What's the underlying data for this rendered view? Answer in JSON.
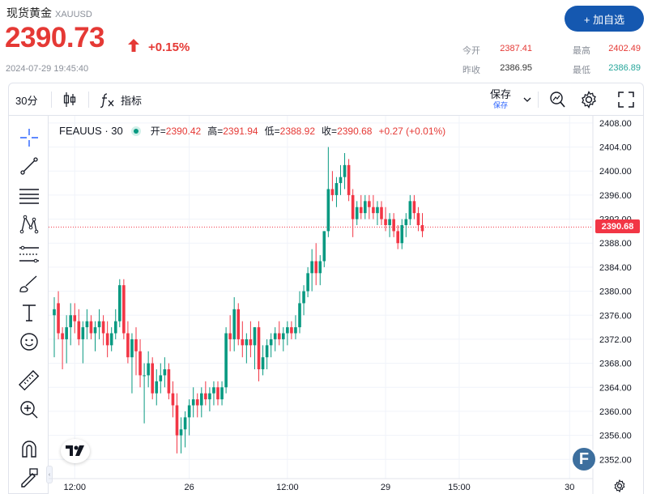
{
  "header": {
    "name": "现货黄金",
    "code": "XAUUSD",
    "price": "2390.73",
    "change": "+0.15%",
    "timestamp": "2024-07-29 19:45:40",
    "watch_button": "+ 加自选",
    "quote": {
      "open_label": "今开",
      "open": "2387.41",
      "high_label": "最高",
      "high": "2402.49",
      "prev_label": "昨收",
      "prev": "2386.95",
      "low_label": "最低",
      "low": "2386.89"
    }
  },
  "toolbar": {
    "interval": "30分",
    "indicators": "指标",
    "save": "保存",
    "save_sub": "保存"
  },
  "left_tools": [
    "crosshair-icon",
    "trend-line-icon",
    "horizontal-lines-icon",
    "pattern-icon",
    "measure-lines-icon",
    "brush-icon",
    "text-icon",
    "emoji-icon",
    "ruler-icon",
    "zoom-in-icon",
    "magnet-icon",
    "lock-pencil-icon"
  ],
  "chart_data": {
    "type": "candlestick",
    "symbol": "FEAUUS",
    "interval": "30",
    "legend": {
      "open_label": "开",
      "open": "2390.42",
      "high_label": "高",
      "high": "2391.94",
      "low_label": "低",
      "low": "2388.92",
      "close_label": "收",
      "close": "2390.68",
      "change": "+0.27 (+0.01%)"
    },
    "last_price": "2390.68",
    "y_ticks": [
      "2408.00",
      "2404.00",
      "2400.00",
      "2396.00",
      "2392.00",
      "2388.00",
      "2384.00",
      "2380.00",
      "2376.00",
      "2372.00",
      "2368.00",
      "2364.00",
      "2360.00",
      "2356.00",
      "2352.00"
    ],
    "ylim": [
      2348.8,
      2409.2
    ],
    "x_ticks": [
      {
        "label": "12:00",
        "index": 5
      },
      {
        "label": "26",
        "index": 33
      },
      {
        "label": "12:00",
        "index": 57
      },
      {
        "label": "29",
        "index": 81
      },
      {
        "label": "15:00",
        "index": 99
      },
      {
        "label": "30",
        "index": 126
      }
    ],
    "candles_ohlc": [
      [
        2376,
        2379,
        2369,
        2377
      ],
      [
        2378,
        2380,
        2372,
        2373
      ],
      [
        2373,
        2374,
        2367,
        2372
      ],
      [
        2372,
        2376,
        2368,
        2374
      ],
      [
        2374,
        2378,
        2371,
        2376
      ],
      [
        2376,
        2378,
        2373,
        2375
      ],
      [
        2375,
        2377,
        2371,
        2372
      ],
      [
        2372,
        2375,
        2368,
        2374
      ],
      [
        2374,
        2377,
        2372,
        2375
      ],
      [
        2375,
        2376,
        2372,
        2373
      ],
      [
        2373,
        2375,
        2370,
        2374
      ],
      [
        2374,
        2377,
        2372,
        2375
      ],
      [
        2375,
        2376,
        2371,
        2373
      ],
      [
        2373,
        2375,
        2369,
        2371
      ],
      [
        2371,
        2374,
        2370,
        2373
      ],
      [
        2373,
        2377,
        2372,
        2375
      ],
      [
        2375,
        2382,
        2374,
        2381
      ],
      [
        2381,
        2382,
        2372,
        2373
      ],
      [
        2373,
        2375,
        2368,
        2369
      ],
      [
        2369,
        2373,
        2363,
        2372
      ],
      [
        2372,
        2374,
        2366,
        2370
      ],
      [
        2370,
        2372,
        2364,
        2366
      ],
      [
        2366,
        2368,
        2358,
        2366
      ],
      [
        2366,
        2370,
        2364,
        2368
      ],
      [
        2368,
        2369,
        2362,
        2363
      ],
      [
        2363,
        2367,
        2361,
        2365
      ],
      [
        2365,
        2368,
        2363,
        2366
      ],
      [
        2366,
        2369,
        2364,
        2367
      ],
      [
        2367,
        2368,
        2362,
        2363
      ],
      [
        2363,
        2365,
        2359,
        2361
      ],
      [
        2361,
        2363,
        2353,
        2356
      ],
      [
        2356,
        2359,
        2353,
        2357
      ],
      [
        2357,
        2360,
        2354,
        2359
      ],
      [
        2359,
        2362,
        2356,
        2361
      ],
      [
        2361,
        2364,
        2359,
        2362
      ],
      [
        2362,
        2363,
        2359,
        2361
      ],
      [
        2361,
        2364,
        2359,
        2363
      ],
      [
        2363,
        2365,
        2361,
        2362
      ],
      [
        2362,
        2364,
        2360,
        2363
      ],
      [
        2363,
        2365,
        2361,
        2364
      ],
      [
        2364,
        2365,
        2361,
        2362
      ],
      [
        2362,
        2365,
        2361,
        2364
      ],
      [
        2364,
        2374,
        2363,
        2373
      ],
      [
        2373,
        2376,
        2370,
        2372
      ],
      [
        2372,
        2379,
        2370,
        2377
      ],
      [
        2377,
        2378,
        2371,
        2372
      ],
      [
        2372,
        2375,
        2369,
        2371
      ],
      [
        2371,
        2373,
        2368,
        2372
      ],
      [
        2372,
        2375,
        2369,
        2371
      ],
      [
        2371,
        2374,
        2367,
        2374
      ],
      [
        2374,
        2375,
        2365,
        2367
      ],
      [
        2367,
        2371,
        2366,
        2369
      ],
      [
        2369,
        2372,
        2367,
        2371
      ],
      [
        2371,
        2373,
        2369,
        2372
      ],
      [
        2372,
        2374,
        2370,
        2373
      ],
      [
        2373,
        2375,
        2371,
        2372
      ],
      [
        2372,
        2374,
        2370,
        2373
      ],
      [
        2373,
        2375,
        2371,
        2374
      ],
      [
        2374,
        2375,
        2372,
        2373
      ],
      [
        2373,
        2376,
        2372,
        2374
      ],
      [
        2374,
        2380,
        2373,
        2378
      ],
      [
        2378,
        2381,
        2376,
        2380
      ],
      [
        2380,
        2384,
        2379,
        2383
      ],
      [
        2383,
        2387,
        2380,
        2385
      ],
      [
        2385,
        2388,
        2381,
        2383
      ],
      [
        2383,
        2386,
        2381,
        2385
      ],
      [
        2385,
        2390,
        2384,
        2390
      ],
      [
        2390,
        2404,
        2389,
        2397
      ],
      [
        2397,
        2400,
        2395,
        2396
      ],
      [
        2396,
        2399,
        2394,
        2398
      ],
      [
        2398,
        2401,
        2396,
        2399
      ],
      [
        2399,
        2403,
        2397,
        2401
      ],
      [
        2401,
        2402,
        2395,
        2396
      ],
      [
        2396,
        2397,
        2389,
        2392
      ],
      [
        2392,
        2395,
        2391,
        2394
      ],
      [
        2394,
        2396,
        2392,
        2393
      ],
      [
        2393,
        2396,
        2392,
        2395
      ],
      [
        2395,
        2396,
        2392,
        2394
      ],
      [
        2394,
        2396,
        2392,
        2393
      ],
      [
        2393,
        2395,
        2391,
        2394
      ],
      [
        2394,
        2395,
        2391,
        2392
      ],
      [
        2392,
        2394,
        2390,
        2391
      ],
      [
        2391,
        2393,
        2389,
        2392
      ],
      [
        2392,
        2393,
        2389,
        2390
      ],
      [
        2390,
        2391,
        2387,
        2388
      ],
      [
        2388,
        2392,
        2387,
        2391
      ],
      [
        2391,
        2393,
        2389,
        2392
      ],
      [
        2392,
        2396,
        2391,
        2395
      ],
      [
        2395,
        2396,
        2392,
        2393
      ],
      [
        2393,
        2394,
        2390,
        2391
      ],
      [
        2391,
        2393,
        2389,
        2390
      ]
    ]
  }
}
